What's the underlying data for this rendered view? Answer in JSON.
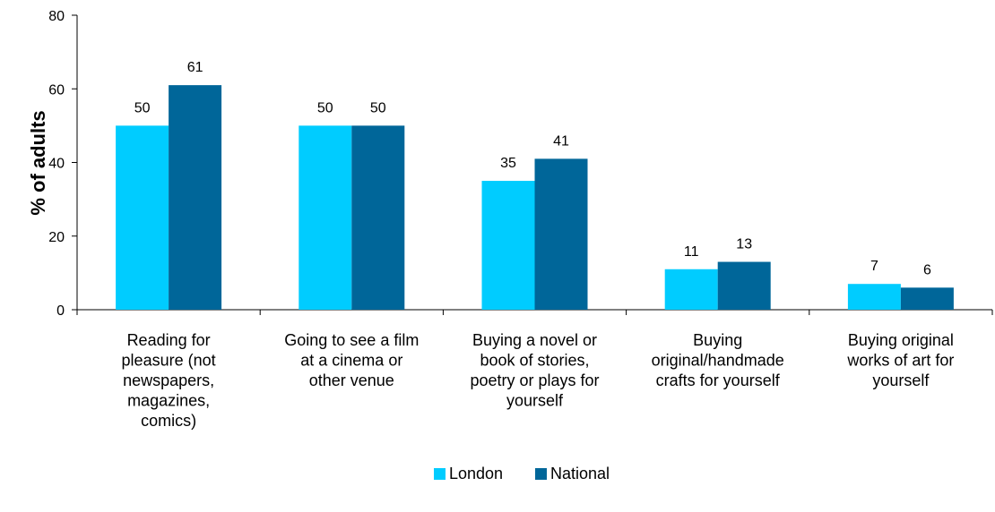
{
  "chart_data": {
    "type": "bar",
    "categories": [
      "Reading for pleasure (not newspapers, magazines, comics)",
      "Going to see a film at a cinema or other venue",
      "Buying a novel or book of stories, poetry or plays for yourself",
      "Buying original/handmade crafts for yourself",
      "Buying original works of art for yourself"
    ],
    "category_lines": [
      [
        "Reading for",
        "pleasure (not",
        "newspapers,",
        "magazines,",
        "comics)"
      ],
      [
        "Going to see a film",
        "at a cinema or",
        "other venue"
      ],
      [
        "Buying a novel or",
        "book of stories,",
        "poetry or plays for",
        "yourself"
      ],
      [
        "Buying",
        "original/handmade",
        "crafts for yourself"
      ],
      [
        "Buying original",
        "works of art for",
        "yourself"
      ]
    ],
    "series": [
      {
        "name": "London",
        "values": [
          50,
          50,
          35,
          11,
          7
        ],
        "color": "#00ccff"
      },
      {
        "name": "National",
        "values": [
          61,
          50,
          41,
          13,
          6
        ],
        "color": "#006699"
      }
    ],
    "ylabel": "% of adults",
    "xlabel": "",
    "ylim": [
      0,
      80
    ],
    "yticks": [
      0,
      20,
      40,
      60,
      80
    ],
    "data_labels": true,
    "grid": false,
    "legend_position": "bottom"
  }
}
